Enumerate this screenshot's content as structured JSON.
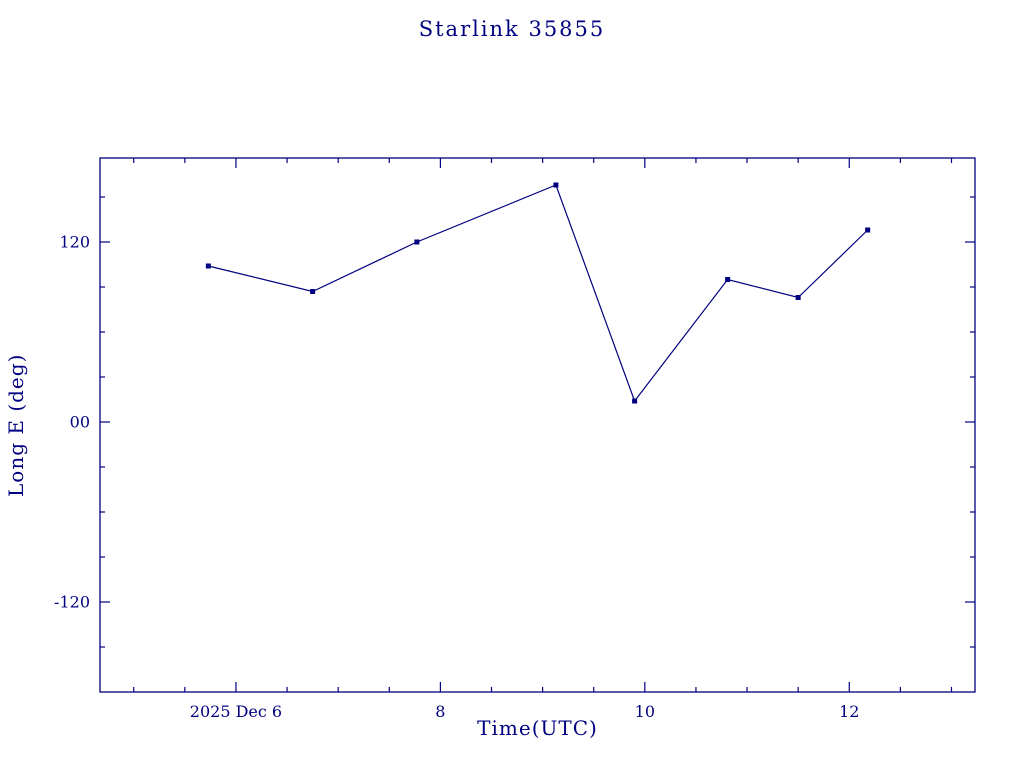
{
  "page": {
    "background": "#ffffff",
    "accent_color": "#000080"
  },
  "chart_data": {
    "type": "line",
    "title": "Starlink 35855",
    "xlabel": "Time(UTC)",
    "ylabel": "Long E (deg)",
    "line_color": "#000080",
    "marker": "square",
    "grid": false,
    "legend": "none",
    "xlim": [
      4.67,
      13.23
    ],
    "ylim": [
      -180,
      176
    ],
    "x_ticks": [
      {
        "value": 6,
        "label": "2025 Dec 6"
      },
      {
        "value": 8,
        "label": "8"
      },
      {
        "value": 10,
        "label": "10"
      },
      {
        "value": 12,
        "label": "12"
      }
    ],
    "x_minor_step": 0.5,
    "y_ticks": [
      {
        "value": 120,
        "label": "120"
      },
      {
        "value": 0,
        "label": "00"
      },
      {
        "value": -120,
        "label": "-120"
      }
    ],
    "y_minor_step": 30,
    "series": [
      {
        "name": "Long E (deg)",
        "x": [
          5.73,
          6.75,
          7.77,
          9.13,
          9.9,
          10.81,
          11.5,
          12.18
        ],
        "y": [
          104,
          87,
          120,
          158,
          14,
          95,
          83,
          128
        ]
      }
    ]
  }
}
